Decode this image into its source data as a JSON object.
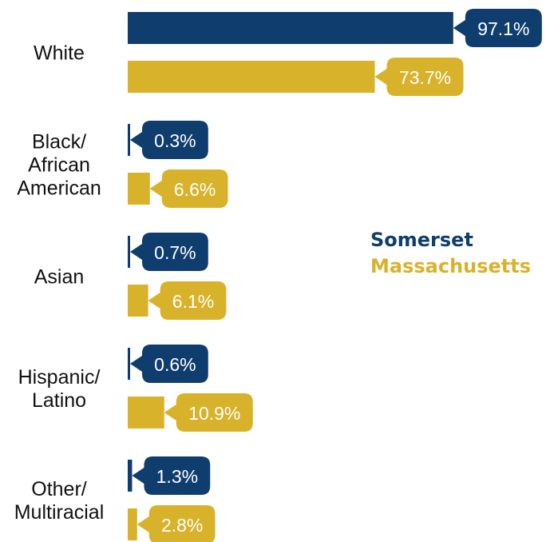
{
  "chart_data": {
    "type": "bar",
    "orientation": "horizontal",
    "categories": [
      [
        "White"
      ],
      [
        "Black/",
        "African",
        "American"
      ],
      [
        "Asian"
      ],
      [
        "Hispanic/",
        "Latino"
      ],
      [
        "Other/",
        "Multiracial"
      ]
    ],
    "series": [
      {
        "name": "Somerset",
        "color": "#0f3e6e",
        "values": [
          97.1,
          0.3,
          0.7,
          0.6,
          1.3
        ],
        "labels": [
          "97.1%",
          "0.3%",
          "0.7%",
          "0.6%",
          "1.3%"
        ]
      },
      {
        "name": "Massachusetts",
        "color": "#d8b22a",
        "values": [
          73.7,
          6.6,
          6.1,
          10.9,
          2.8
        ],
        "labels": [
          "73.7%",
          "6.6%",
          "6.1%",
          "10.9%",
          "2.8%"
        ]
      }
    ],
    "xlim": [
      0,
      100
    ],
    "legend_position": "right"
  },
  "legend": {
    "somerset": "Somerset",
    "massachusetts": "Massachusetts"
  }
}
